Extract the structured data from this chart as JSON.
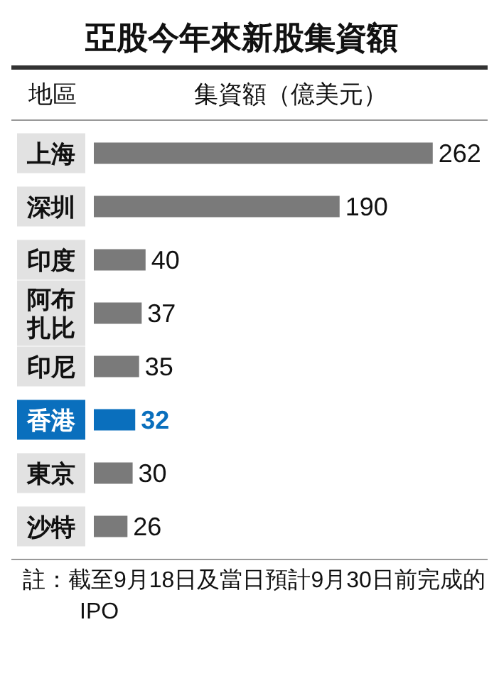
{
  "chart_data": {
    "type": "bar",
    "orientation": "horizontal",
    "title": "亞股今年來新股集資額",
    "ylabel": "地區",
    "xlabel": "集資額（億美元）",
    "categories": [
      "上海",
      "深圳",
      "印度",
      "阿布扎比",
      "印尼",
      "香港",
      "東京",
      "沙特"
    ],
    "values": [
      262,
      190,
      40,
      37,
      35,
      32,
      30,
      26
    ],
    "colors": [
      "#7a7a7a",
      "#7a7a7a",
      "#7a7a7a",
      "#7a7a7a",
      "#7a7a7a",
      "#0a6fbd",
      "#7a7a7a",
      "#7a7a7a"
    ],
    "data_labels": true,
    "annotations": [
      "註：截至9月18日及當日預計9月30日前完成的IPO"
    ]
  }
}
